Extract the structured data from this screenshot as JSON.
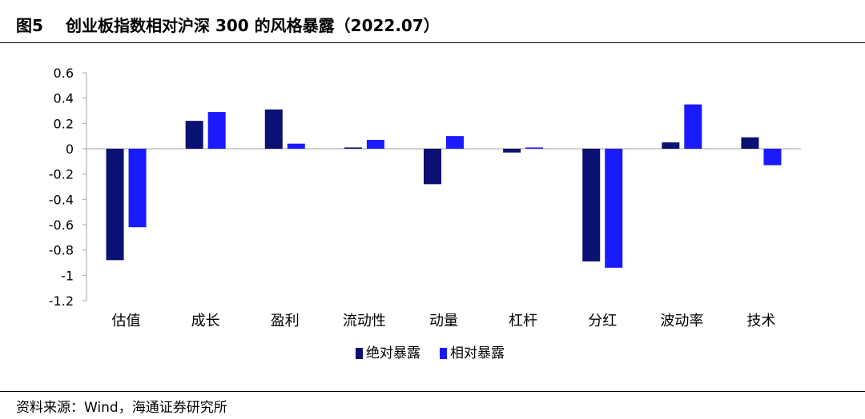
{
  "header": {
    "figure_label": "图5",
    "title": "创业板指数相对沪深 300 的风格暴露（2022.07）"
  },
  "source": "资料来源：Wind，海通证券研究所",
  "colors": {
    "absolute": "#0a1172",
    "relative": "#1a1aff"
  },
  "chart_data": {
    "type": "bar",
    "title": "",
    "xlabel": "",
    "ylabel": "",
    "categories": [
      "估值",
      "成长",
      "盈利",
      "流动性",
      "动量",
      "杠杆",
      "分红",
      "波动率",
      "技术"
    ],
    "series": [
      {
        "name": "绝对暴露",
        "values": [
          -0.88,
          0.22,
          0.31,
          0.01,
          -0.28,
          -0.03,
          -0.89,
          0.05,
          0.09
        ]
      },
      {
        "name": "相对暴露",
        "values": [
          -0.62,
          0.29,
          0.04,
          0.07,
          0.1,
          0.01,
          -0.94,
          0.35,
          -0.13
        ]
      }
    ],
    "ylim": [
      -1.2,
      0.6
    ],
    "yticks": [
      "0.6",
      "0.4",
      "0.2",
      "0",
      "-0.2",
      "-0.4",
      "-0.6",
      "-0.8",
      "-1",
      "-1.2"
    ],
    "grid": false,
    "legend_position": "bottom"
  }
}
